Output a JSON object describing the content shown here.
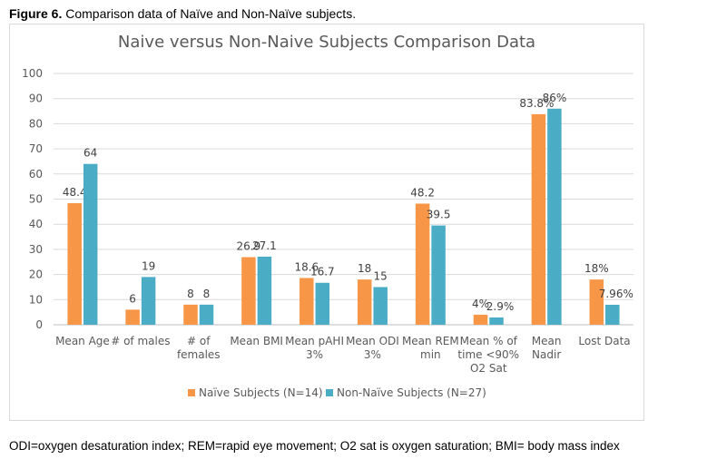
{
  "figure": {
    "label": "Figure 6.",
    "caption": " Comparison data of Naïve and Non-Naïve subjects.",
    "footnote": "ODI=oxygen desaturation index; REM=rapid eye movement; O2 sat is oxygen saturation; BMI= body mass index"
  },
  "colors": {
    "naive": "#F79646",
    "non_naive": "#4BACC6",
    "grid": "#D9D9D9",
    "text": "#595959"
  },
  "chart_data": {
    "type": "bar",
    "title": "Naive versus Non-Naive Subjects Comparison Data",
    "xlabel": "",
    "ylabel": "",
    "ylim": [
      0,
      100
    ],
    "yticks": [
      "0",
      "10",
      "20",
      "30",
      "40",
      "50",
      "60",
      "70",
      "80",
      "90",
      "100"
    ],
    "grid": true,
    "legend_position": "bottom",
    "categories": [
      [
        "Mean Age"
      ],
      [
        "# of males"
      ],
      [
        "# of",
        "females"
      ],
      [
        "Mean BMI"
      ],
      [
        "Mean pAHI",
        "3%"
      ],
      [
        "Mean ODI",
        "3%"
      ],
      [
        "Mean REM",
        "min"
      ],
      [
        "Mean % of",
        "time <90%",
        "O2 Sat"
      ],
      [
        "Mean",
        "Nadir"
      ],
      [
        "Lost Data"
      ]
    ],
    "series": [
      {
        "name": "Naïve Subjects (N=14)",
        "values": [
          48.4,
          6,
          8,
          26.9,
          18.6,
          18,
          48.2,
          4,
          83.8,
          18
        ],
        "labels": [
          "48.4",
          "6",
          "8",
          "26.9",
          "18.6",
          "18",
          "48.2",
          "4%",
          "83.8%",
          "18%"
        ]
      },
      {
        "name": "Non-Naïve Subjects (N=27)",
        "values": [
          64,
          19,
          8,
          27.1,
          16.7,
          15,
          39.5,
          2.9,
          86,
          7.96
        ],
        "labels": [
          "64",
          "19",
          "8",
          "27.1",
          "16.7",
          "15",
          "39.5",
          "2.9%",
          "86%",
          "7.96%"
        ]
      }
    ]
  }
}
